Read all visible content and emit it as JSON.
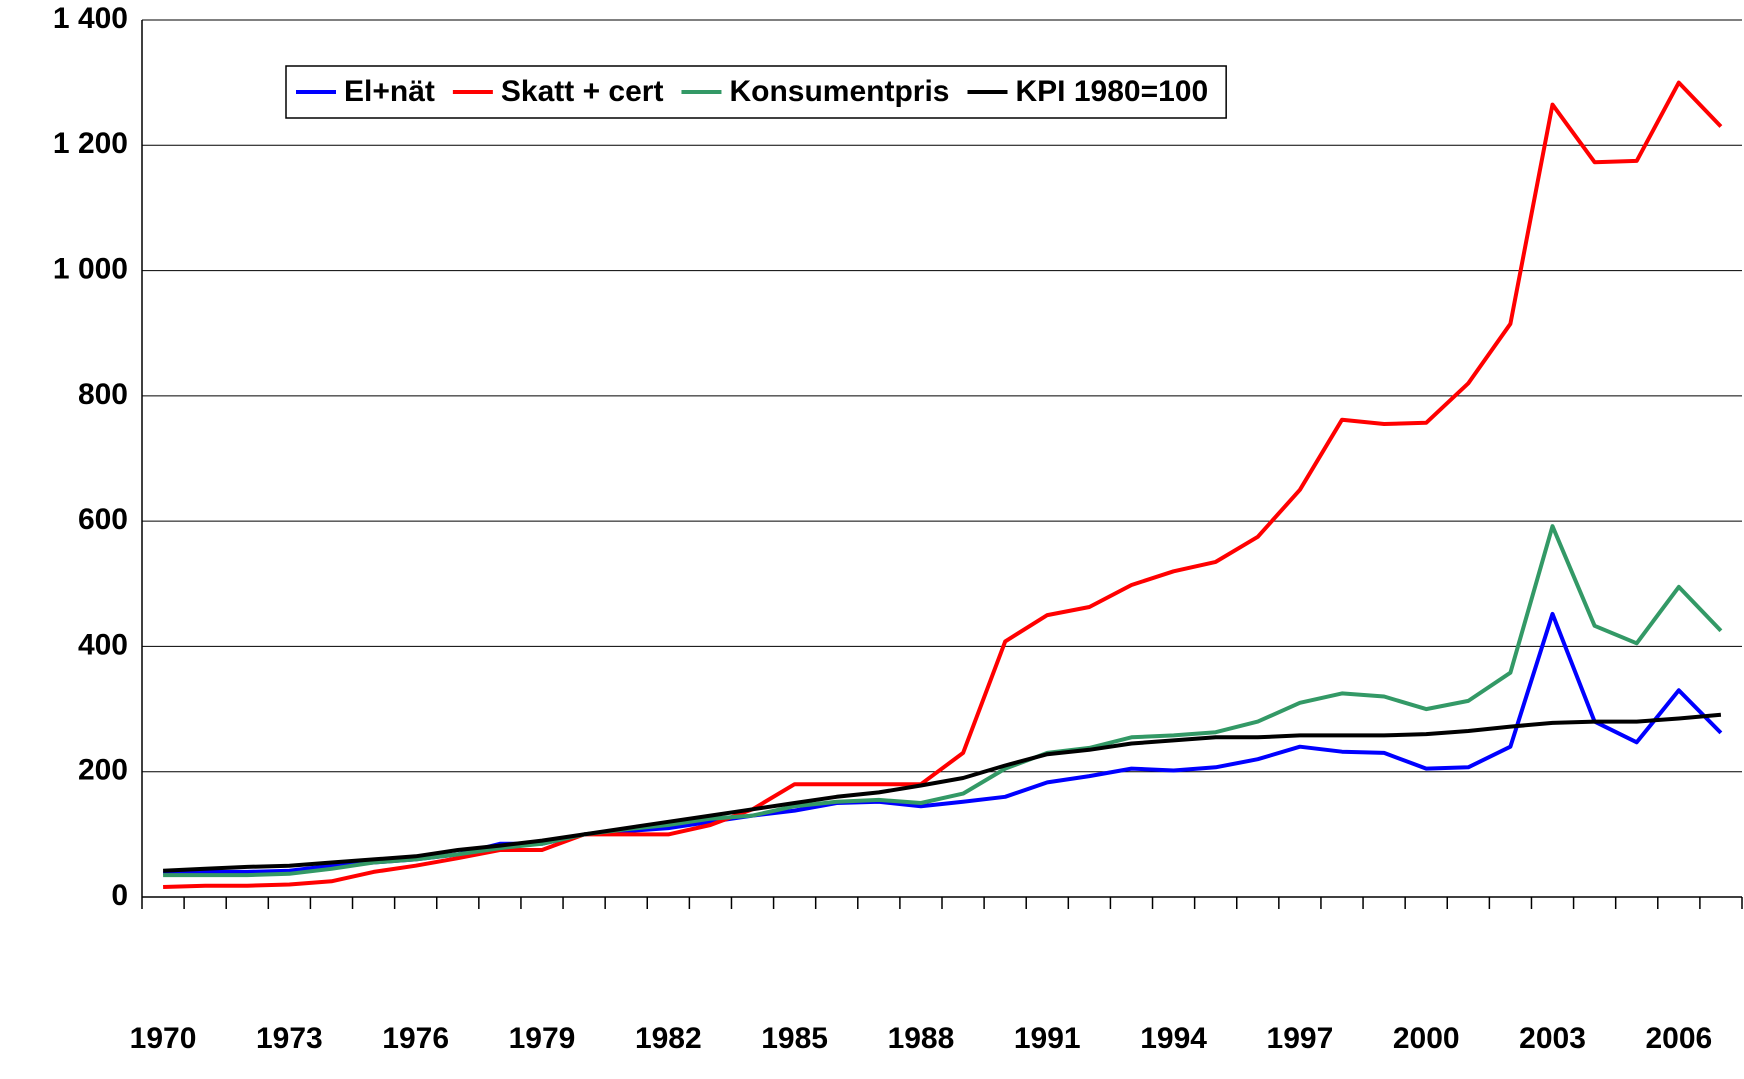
{
  "chart_data": {
    "type": "line",
    "categories": [
      "1970",
      null,
      null,
      "1973",
      null,
      null,
      "1976",
      null,
      null,
      "1979",
      null,
      null,
      "1982",
      null,
      null,
      "1985",
      null,
      null,
      "1988",
      null,
      null,
      "1991",
      null,
      null,
      "1994",
      null,
      null,
      "1997",
      null,
      null,
      "2000",
      null,
      null,
      "2003",
      null,
      null,
      "2006",
      null
    ],
    "series": [
      {
        "name": "El+nät",
        "color": "#0000ff",
        "values": [
          38,
          40,
          40,
          42,
          50,
          55,
          60,
          68,
          85,
          85,
          100,
          105,
          110,
          120,
          130,
          138,
          150,
          152,
          145,
          152,
          160,
          183,
          193,
          205,
          202,
          207,
          220,
          240,
          232,
          230,
          205,
          207,
          240,
          452,
          280,
          247,
          330,
          262
        ]
      },
      {
        "name": "Skatt + cert",
        "color": "#ff0000",
        "values": [
          16,
          18,
          18,
          20,
          25,
          40,
          50,
          62,
          75,
          75,
          100,
          100,
          100,
          115,
          140,
          180,
          180,
          180,
          180,
          230,
          408,
          450,
          463,
          498,
          520,
          535,
          575,
          650,
          762,
          755,
          757,
          820,
          915,
          1265,
          1173,
          1175,
          1300,
          1230
        ]
      },
      {
        "name": "Konsumentpris",
        "color": "#339966",
        "values": [
          35,
          35,
          35,
          37,
          45,
          55,
          60,
          68,
          78,
          85,
          100,
          108,
          115,
          125,
          130,
          145,
          152,
          155,
          150,
          165,
          205,
          230,
          238,
          255,
          258,
          263,
          280,
          310,
          325,
          320,
          300,
          313,
          358,
          592,
          433,
          405,
          495,
          425
        ]
      },
      {
        "name": "KPI 1980=100",
        "color": "#000000",
        "values": [
          42,
          45,
          48,
          50,
          55,
          60,
          65,
          75,
          82,
          90,
          100,
          110,
          120,
          130,
          140,
          150,
          160,
          167,
          178,
          190,
          210,
          228,
          235,
          245,
          250,
          255,
          255,
          258,
          258,
          258,
          260,
          265,
          272,
          278,
          280,
          280,
          285,
          291
        ]
      }
    ],
    "ylim": [
      0,
      1400
    ],
    "yticks": [
      0,
      200,
      400,
      600,
      800,
      {
        "value": 1000,
        "label": "1 000"
      },
      {
        "value": 1200,
        "label": "1 200"
      },
      {
        "value": 1400,
        "label": "1 400"
      }
    ],
    "grid": true,
    "legend": "top"
  }
}
